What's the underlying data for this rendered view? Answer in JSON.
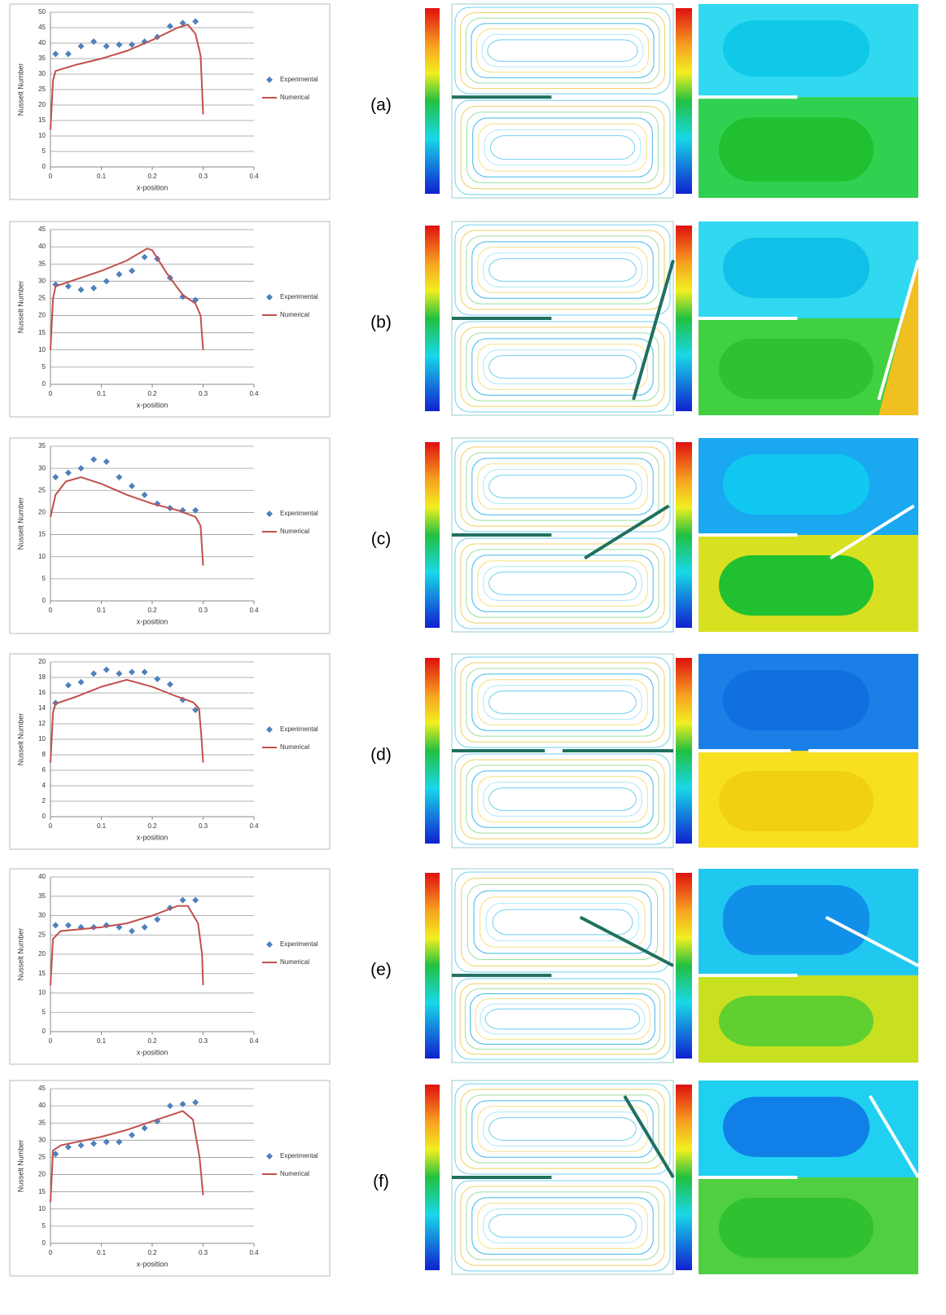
{
  "chart_data": [
    {
      "type": "scatter",
      "panel_label": "(a)",
      "x_label": "x-position",
      "y_label": "Nusselt Number",
      "xlim": [
        0,
        0.4
      ],
      "xticks": [
        0,
        0.1,
        0.2,
        0.3,
        0.4
      ],
      "ylim": [
        0,
        50
      ],
      "yticks": [
        0,
        5,
        10,
        15,
        20,
        25,
        30,
        35,
        40,
        45,
        50
      ],
      "grid": true,
      "legend": "right",
      "series": [
        {
          "name": "Experimental",
          "mode": "markers",
          "color": "#4f81bd",
          "x": [
            0.01,
            0.035,
            0.06,
            0.085,
            0.11,
            0.135,
            0.16,
            0.185,
            0.21,
            0.235,
            0.26,
            0.285
          ],
          "values": [
            36.5,
            36.5,
            39,
            40.5,
            39,
            39.5,
            39.5,
            40.5,
            42,
            45.5,
            46.5,
            47
          ]
        },
        {
          "name": "Numerical",
          "mode": "line",
          "color": "#c0504d",
          "x": [
            0,
            0.005,
            0.01,
            0.05,
            0.1,
            0.15,
            0.2,
            0.25,
            0.27,
            0.285,
            0.295,
            0.298,
            0.3
          ],
          "values": [
            12,
            28,
            31,
            33,
            35,
            37.5,
            41,
            45,
            46,
            43,
            36,
            25,
            17
          ]
        }
      ]
    },
    {
      "type": "scatter",
      "panel_label": "(b)",
      "x_label": "x-position",
      "y_label": "Nusselt Number",
      "xlim": [
        0,
        0.4
      ],
      "xticks": [
        0,
        0.1,
        0.2,
        0.3,
        0.4
      ],
      "ylim": [
        0,
        45
      ],
      "yticks": [
        0,
        5,
        10,
        15,
        20,
        25,
        30,
        35,
        40,
        45
      ],
      "grid": true,
      "legend": "right",
      "series": [
        {
          "name": "Experimental",
          "mode": "markers",
          "color": "#4f81bd",
          "x": [
            0.01,
            0.035,
            0.06,
            0.085,
            0.11,
            0.135,
            0.16,
            0.185,
            0.21,
            0.235,
            0.26,
            0.285
          ],
          "values": [
            29,
            28.5,
            27.5,
            28,
            30,
            32,
            33,
            37,
            36.5,
            31,
            25.5,
            24.5
          ]
        },
        {
          "name": "Numerical",
          "mode": "line",
          "color": "#c0504d",
          "x": [
            0,
            0.005,
            0.01,
            0.05,
            0.1,
            0.15,
            0.19,
            0.2,
            0.23,
            0.26,
            0.285,
            0.295,
            0.3
          ],
          "values": [
            10,
            25,
            28.5,
            30.5,
            33,
            36,
            39.5,
            39,
            32,
            26,
            23.5,
            20,
            10
          ]
        }
      ]
    },
    {
      "type": "scatter",
      "panel_label": "(c)",
      "x_label": "x-position",
      "y_label": "Nusselt Number",
      "xlim": [
        0,
        0.4
      ],
      "xticks": [
        0,
        0.1,
        0.2,
        0.3,
        0.4
      ],
      "ylim": [
        0,
        35
      ],
      "yticks": [
        0,
        5,
        10,
        15,
        20,
        25,
        30,
        35
      ],
      "grid": true,
      "legend": "right",
      "series": [
        {
          "name": "Experimental",
          "mode": "markers",
          "color": "#4f81bd",
          "x": [
            0.01,
            0.035,
            0.06,
            0.085,
            0.11,
            0.135,
            0.16,
            0.185,
            0.21,
            0.235,
            0.26,
            0.285
          ],
          "values": [
            28,
            29,
            30,
            32,
            31.5,
            28,
            26,
            24,
            22,
            21,
            20.5,
            20.5
          ]
        },
        {
          "name": "Numerical",
          "mode": "line",
          "color": "#c0504d",
          "x": [
            0,
            0.01,
            0.03,
            0.06,
            0.1,
            0.15,
            0.2,
            0.25,
            0.285,
            0.295,
            0.3
          ],
          "values": [
            19,
            24,
            27,
            28,
            26.5,
            24,
            22,
            20.5,
            19,
            17,
            8
          ]
        }
      ]
    },
    {
      "type": "scatter",
      "panel_label": "(d)",
      "x_label": "x-position",
      "y_label": "Nusselt Number",
      "xlim": [
        0,
        0.4
      ],
      "xticks": [
        0,
        0.1,
        0.2,
        0.3,
        0.4
      ],
      "ylim": [
        0,
        20
      ],
      "yticks": [
        0,
        2,
        4,
        6,
        8,
        10,
        12,
        14,
        16,
        18,
        20
      ],
      "grid": true,
      "legend": "right",
      "series": [
        {
          "name": "Experimental",
          "mode": "markers",
          "color": "#4f81bd",
          "x": [
            0.01,
            0.035,
            0.06,
            0.085,
            0.11,
            0.135,
            0.16,
            0.185,
            0.21,
            0.235,
            0.26,
            0.285
          ],
          "values": [
            14.7,
            17,
            17.4,
            18.5,
            19,
            18.5,
            18.7,
            18.7,
            17.8,
            17.1,
            15.1,
            13.8
          ]
        },
        {
          "name": "Numerical",
          "mode": "line",
          "color": "#c0504d",
          "x": [
            0,
            0.005,
            0.01,
            0.05,
            0.1,
            0.15,
            0.2,
            0.25,
            0.28,
            0.292,
            0.297,
            0.3
          ],
          "values": [
            7,
            13.5,
            14.6,
            15.5,
            16.8,
            17.7,
            16.8,
            15.5,
            14.8,
            14,
            10,
            7
          ]
        }
      ]
    },
    {
      "type": "scatter",
      "panel_label": "(e)",
      "x_label": "x-position",
      "y_label": "Nusselt Number",
      "xlim": [
        0,
        0.4
      ],
      "xticks": [
        0,
        0.1,
        0.2,
        0.3,
        0.4
      ],
      "ylim": [
        0,
        40
      ],
      "yticks": [
        0,
        5,
        10,
        15,
        20,
        25,
        30,
        35,
        40
      ],
      "grid": true,
      "legend": "right",
      "series": [
        {
          "name": "Experimental",
          "mode": "markers",
          "color": "#4f81bd",
          "x": [
            0.01,
            0.035,
            0.06,
            0.085,
            0.11,
            0.135,
            0.16,
            0.185,
            0.21,
            0.235,
            0.26,
            0.285
          ],
          "values": [
            27.5,
            27.5,
            27,
            27,
            27.5,
            27,
            26,
            27,
            29,
            32,
            34,
            34
          ]
        },
        {
          "name": "Numerical",
          "mode": "line",
          "color": "#c0504d",
          "x": [
            0,
            0.005,
            0.02,
            0.1,
            0.15,
            0.2,
            0.25,
            0.27,
            0.29,
            0.298,
            0.3
          ],
          "values": [
            12,
            24,
            26,
            27,
            28,
            30,
            32.5,
            32.5,
            28,
            20,
            12
          ]
        }
      ]
    },
    {
      "type": "scatter",
      "panel_label": "(f)",
      "x_label": "x-position",
      "y_label": "Nusselt Number",
      "xlim": [
        0,
        0.4
      ],
      "xticks": [
        0,
        0.1,
        0.2,
        0.3,
        0.4
      ],
      "ylim": [
        0,
        45
      ],
      "yticks": [
        0,
        5,
        10,
        15,
        20,
        25,
        30,
        35,
        40,
        45
      ],
      "grid": true,
      "legend": "right",
      "series": [
        {
          "name": "Experimental",
          "mode": "markers",
          "color": "#4f81bd",
          "x": [
            0.01,
            0.035,
            0.06,
            0.085,
            0.11,
            0.135,
            0.16,
            0.185,
            0.21,
            0.235,
            0.26,
            0.285
          ],
          "values": [
            26,
            28,
            28.5,
            29,
            29.5,
            29.5,
            31.5,
            33.5,
            35.5,
            40,
            40.5,
            41
          ]
        },
        {
          "name": "Numerical",
          "mode": "line",
          "color": "#c0504d",
          "x": [
            0,
            0.005,
            0.02,
            0.1,
            0.15,
            0.2,
            0.26,
            0.28,
            0.293,
            0.3
          ],
          "values": [
            12,
            27,
            28.5,
            31,
            33,
            35.5,
            38.5,
            36,
            25,
            14
          ]
        }
      ]
    }
  ]
}
